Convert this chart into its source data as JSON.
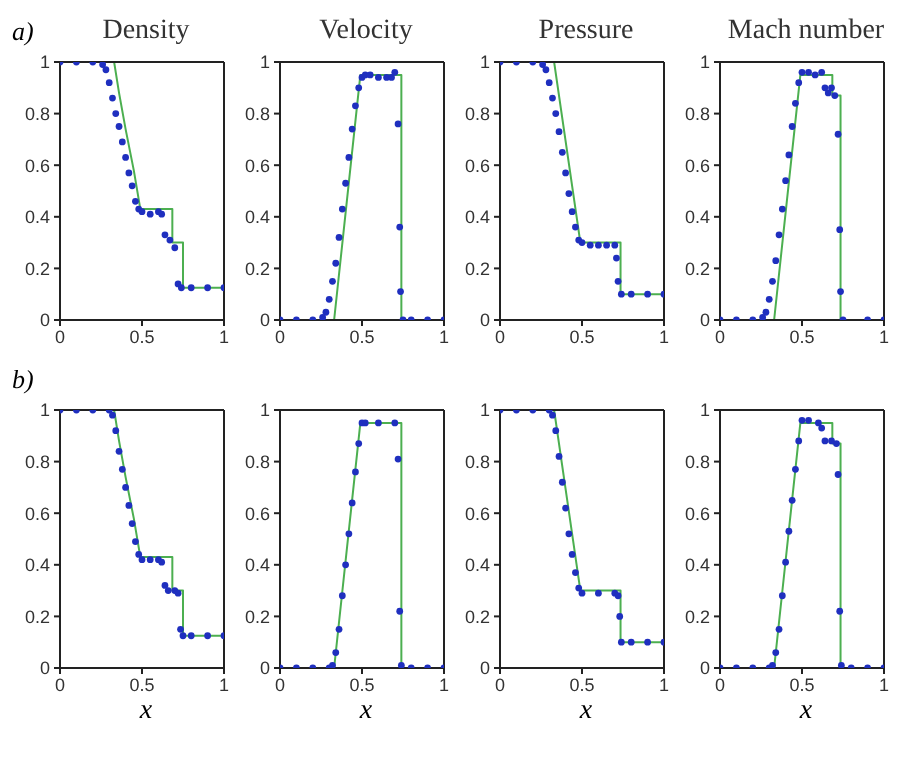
{
  "chart_data": [
    {
      "type": "line",
      "title": "Density",
      "annotations": [
        "a)"
      ],
      "xlim": [
        0,
        1
      ],
      "xticks": [
        0,
        0.5,
        1
      ],
      "ylim": [
        0,
        1
      ],
      "yticks": [
        0,
        0.2,
        0.4,
        0.6,
        0.8,
        1
      ],
      "grid": false,
      "series": [
        {
          "type": "line",
          "color": "#4caf50",
          "line_style": "solid",
          "marker": "none",
          "x": [
            0,
            0.33,
            0.36,
            0.4,
            0.45,
            0.49,
            0.685,
            0.685,
            0.75,
            0.75,
            1
          ],
          "values": [
            1,
            1,
            0.88,
            0.74,
            0.58,
            0.43,
            0.43,
            0.3,
            0.3,
            0.125,
            0.125
          ]
        },
        {
          "type": "scatter",
          "color": "#1f2fbf",
          "marker": "circle",
          "x": [
            0,
            0.1,
            0.2,
            0.26,
            0.28,
            0.3,
            0.32,
            0.34,
            0.36,
            0.38,
            0.4,
            0.42,
            0.44,
            0.46,
            0.48,
            0.5,
            0.55,
            0.6,
            0.62,
            0.64,
            0.67,
            0.7,
            0.72,
            0.74,
            0.8,
            0.9,
            1
          ],
          "values": [
            1,
            1,
            1,
            0.99,
            0.97,
            0.92,
            0.86,
            0.8,
            0.75,
            0.69,
            0.63,
            0.57,
            0.52,
            0.46,
            0.43,
            0.42,
            0.41,
            0.42,
            0.41,
            0.33,
            0.31,
            0.28,
            0.14,
            0.125,
            0.125,
            0.125,
            0.125
          ]
        }
      ]
    },
    {
      "type": "line",
      "title": "Velocity",
      "xlim": [
        0,
        1
      ],
      "xticks": [
        0,
        0.5,
        1
      ],
      "ylim": [
        0,
        1
      ],
      "yticks": [
        0,
        0.2,
        0.4,
        0.6,
        0.8,
        1
      ],
      "grid": false,
      "series": [
        {
          "type": "line",
          "color": "#4caf50",
          "line_style": "solid",
          "marker": "none",
          "x": [
            0,
            0.33,
            0.49,
            0.74,
            0.74,
            1
          ],
          "values": [
            0,
            0,
            0.95,
            0.95,
            0,
            0
          ]
        },
        {
          "type": "scatter",
          "color": "#1f2fbf",
          "marker": "circle",
          "x": [
            0,
            0.1,
            0.2,
            0.26,
            0.28,
            0.3,
            0.32,
            0.34,
            0.36,
            0.38,
            0.4,
            0.42,
            0.44,
            0.46,
            0.48,
            0.5,
            0.52,
            0.55,
            0.6,
            0.65,
            0.68,
            0.7,
            0.72,
            0.73,
            0.735,
            0.75,
            0.8,
            0.9,
            1
          ],
          "values": [
            0,
            0,
            0,
            0.01,
            0.03,
            0.08,
            0.15,
            0.22,
            0.32,
            0.43,
            0.53,
            0.63,
            0.74,
            0.83,
            0.9,
            0.94,
            0.95,
            0.95,
            0.94,
            0.94,
            0.94,
            0.96,
            0.76,
            0.36,
            0.11,
            0,
            0,
            0,
            0
          ]
        }
      ]
    },
    {
      "type": "line",
      "title": "Pressure",
      "xlim": [
        0,
        1
      ],
      "xticks": [
        0,
        0.5,
        1
      ],
      "ylim": [
        0,
        1
      ],
      "yticks": [
        0,
        0.2,
        0.4,
        0.6,
        0.8,
        1
      ],
      "grid": false,
      "series": [
        {
          "type": "line",
          "color": "#4caf50",
          "line_style": "solid",
          "marker": "none",
          "x": [
            0,
            0.33,
            0.49,
            0.735,
            0.735,
            1
          ],
          "values": [
            1,
            1,
            0.3,
            0.3,
            0.1,
            0.1
          ]
        },
        {
          "type": "scatter",
          "color": "#1f2fbf",
          "marker": "circle",
          "x": [
            0,
            0.1,
            0.2,
            0.26,
            0.28,
            0.3,
            0.32,
            0.34,
            0.36,
            0.38,
            0.4,
            0.42,
            0.44,
            0.46,
            0.48,
            0.5,
            0.55,
            0.6,
            0.65,
            0.7,
            0.71,
            0.72,
            0.74,
            0.8,
            0.9,
            1
          ],
          "values": [
            1,
            1,
            1,
            0.99,
            0.97,
            0.92,
            0.86,
            0.8,
            0.73,
            0.65,
            0.57,
            0.49,
            0.42,
            0.36,
            0.31,
            0.3,
            0.29,
            0.29,
            0.29,
            0.29,
            0.24,
            0.15,
            0.1,
            0.1,
            0.1,
            0.1
          ]
        }
      ]
    },
    {
      "type": "line",
      "title": "Mach number",
      "xlim": [
        0,
        1
      ],
      "xticks": [
        0,
        0.5,
        1
      ],
      "ylim": [
        0,
        1
      ],
      "yticks": [
        0,
        0.2,
        0.4,
        0.6,
        0.8,
        1
      ],
      "grid": false,
      "series": [
        {
          "type": "line",
          "color": "#4caf50",
          "line_style": "solid",
          "marker": "none",
          "x": [
            0,
            0.33,
            0.49,
            0.685,
            0.685,
            0.735,
            0.735,
            1
          ],
          "values": [
            0,
            0,
            0.95,
            0.95,
            0.87,
            0.87,
            0,
            0
          ]
        },
        {
          "type": "scatter",
          "color": "#1f2fbf",
          "marker": "circle",
          "x": [
            0,
            0.1,
            0.2,
            0.26,
            0.28,
            0.3,
            0.32,
            0.34,
            0.36,
            0.38,
            0.4,
            0.42,
            0.44,
            0.46,
            0.48,
            0.5,
            0.54,
            0.58,
            0.62,
            0.64,
            0.66,
            0.68,
            0.7,
            0.72,
            0.73,
            0.735,
            0.75,
            0.9,
            1
          ],
          "values": [
            0,
            0,
            0,
            0.01,
            0.03,
            0.08,
            0.15,
            0.23,
            0.33,
            0.43,
            0.54,
            0.64,
            0.75,
            0.84,
            0.92,
            0.96,
            0.96,
            0.95,
            0.96,
            0.9,
            0.88,
            0.9,
            0.87,
            0.72,
            0.35,
            0.11,
            0,
            0,
            0
          ]
        }
      ]
    },
    {
      "type": "line",
      "xlabel": "x",
      "annotations": [
        "b)"
      ],
      "xlim": [
        0,
        1
      ],
      "xticks": [
        0,
        0.5,
        1
      ],
      "ylim": [
        0,
        1
      ],
      "yticks": [
        0,
        0.2,
        0.4,
        0.6,
        0.8,
        1
      ],
      "grid": false,
      "series": [
        {
          "type": "line",
          "color": "#4caf50",
          "line_style": "solid",
          "marker": "none",
          "x": [
            0,
            0.33,
            0.36,
            0.4,
            0.45,
            0.49,
            0.685,
            0.685,
            0.75,
            0.75,
            1
          ],
          "values": [
            1,
            1,
            0.88,
            0.74,
            0.58,
            0.43,
            0.43,
            0.3,
            0.3,
            0.125,
            0.125
          ]
        },
        {
          "type": "scatter",
          "color": "#1f2fbf",
          "marker": "circle",
          "x": [
            0,
            0.1,
            0.2,
            0.3,
            0.32,
            0.34,
            0.36,
            0.38,
            0.4,
            0.42,
            0.44,
            0.46,
            0.48,
            0.5,
            0.55,
            0.6,
            0.62,
            0.64,
            0.66,
            0.7,
            0.72,
            0.735,
            0.75,
            0.8,
            0.9,
            1
          ],
          "values": [
            1,
            1,
            1,
            1,
            0.98,
            0.92,
            0.84,
            0.77,
            0.7,
            0.63,
            0.56,
            0.49,
            0.44,
            0.42,
            0.42,
            0.42,
            0.41,
            0.32,
            0.3,
            0.3,
            0.29,
            0.15,
            0.125,
            0.125,
            0.125,
            0.125
          ]
        }
      ]
    },
    {
      "type": "line",
      "xlabel": "x",
      "xlim": [
        0,
        1
      ],
      "xticks": [
        0,
        0.5,
        1
      ],
      "ylim": [
        0,
        1
      ],
      "yticks": [
        0,
        0.2,
        0.4,
        0.6,
        0.8,
        1
      ],
      "grid": false,
      "series": [
        {
          "type": "line",
          "color": "#4caf50",
          "line_style": "solid",
          "marker": "none",
          "x": [
            0,
            0.33,
            0.49,
            0.74,
            0.74,
            1
          ],
          "values": [
            0,
            0,
            0.95,
            0.95,
            0,
            0
          ]
        },
        {
          "type": "scatter",
          "color": "#1f2fbf",
          "marker": "circle",
          "x": [
            0,
            0.1,
            0.2,
            0.3,
            0.32,
            0.34,
            0.36,
            0.38,
            0.4,
            0.42,
            0.44,
            0.46,
            0.48,
            0.5,
            0.52,
            0.6,
            0.7,
            0.72,
            0.73,
            0.74,
            0.8,
            0.9,
            1
          ],
          "values": [
            0,
            0,
            0,
            0,
            0.01,
            0.06,
            0.15,
            0.28,
            0.4,
            0.52,
            0.64,
            0.76,
            0.87,
            0.95,
            0.95,
            0.95,
            0.95,
            0.81,
            0.22,
            0.01,
            0,
            0,
            0
          ]
        }
      ]
    },
    {
      "type": "line",
      "xlabel": "x",
      "xlim": [
        0,
        1
      ],
      "xticks": [
        0,
        0.5,
        1
      ],
      "ylim": [
        0,
        1
      ],
      "yticks": [
        0,
        0.2,
        0.4,
        0.6,
        0.8,
        1
      ],
      "grid": false,
      "series": [
        {
          "type": "line",
          "color": "#4caf50",
          "line_style": "solid",
          "marker": "none",
          "x": [
            0,
            0.33,
            0.49,
            0.735,
            0.735,
            1
          ],
          "values": [
            1,
            1,
            0.3,
            0.3,
            0.1,
            0.1
          ]
        },
        {
          "type": "scatter",
          "color": "#1f2fbf",
          "marker": "circle",
          "x": [
            0,
            0.1,
            0.2,
            0.3,
            0.32,
            0.34,
            0.36,
            0.38,
            0.4,
            0.42,
            0.44,
            0.46,
            0.48,
            0.5,
            0.6,
            0.7,
            0.72,
            0.73,
            0.74,
            0.8,
            0.9,
            1
          ],
          "values": [
            1,
            1,
            1,
            1,
            0.98,
            0.92,
            0.82,
            0.72,
            0.62,
            0.52,
            0.44,
            0.37,
            0.31,
            0.29,
            0.29,
            0.29,
            0.28,
            0.2,
            0.1,
            0.1,
            0.1,
            0.1
          ]
        }
      ]
    },
    {
      "type": "line",
      "xlabel": "x",
      "xlim": [
        0,
        1
      ],
      "xticks": [
        0,
        0.5,
        1
      ],
      "ylim": [
        0,
        1
      ],
      "yticks": [
        0,
        0.2,
        0.4,
        0.6,
        0.8,
        1
      ],
      "grid": false,
      "series": [
        {
          "type": "line",
          "color": "#4caf50",
          "line_style": "solid",
          "marker": "none",
          "x": [
            0,
            0.33,
            0.49,
            0.685,
            0.685,
            0.735,
            0.735,
            1
          ],
          "values": [
            0,
            0,
            0.95,
            0.95,
            0.87,
            0.87,
            0,
            0
          ]
        },
        {
          "type": "scatter",
          "color": "#1f2fbf",
          "marker": "circle",
          "x": [
            0,
            0.1,
            0.2,
            0.3,
            0.32,
            0.34,
            0.36,
            0.38,
            0.4,
            0.42,
            0.44,
            0.46,
            0.48,
            0.5,
            0.54,
            0.6,
            0.62,
            0.64,
            0.68,
            0.71,
            0.72,
            0.73,
            0.74,
            0.8,
            0.9,
            1
          ],
          "values": [
            0,
            0,
            0,
            0,
            0.01,
            0.06,
            0.15,
            0.28,
            0.41,
            0.53,
            0.65,
            0.77,
            0.88,
            0.96,
            0.96,
            0.95,
            0.93,
            0.88,
            0.88,
            0.87,
            0.75,
            0.22,
            0.01,
            0,
            0,
            0
          ]
        }
      ]
    }
  ]
}
